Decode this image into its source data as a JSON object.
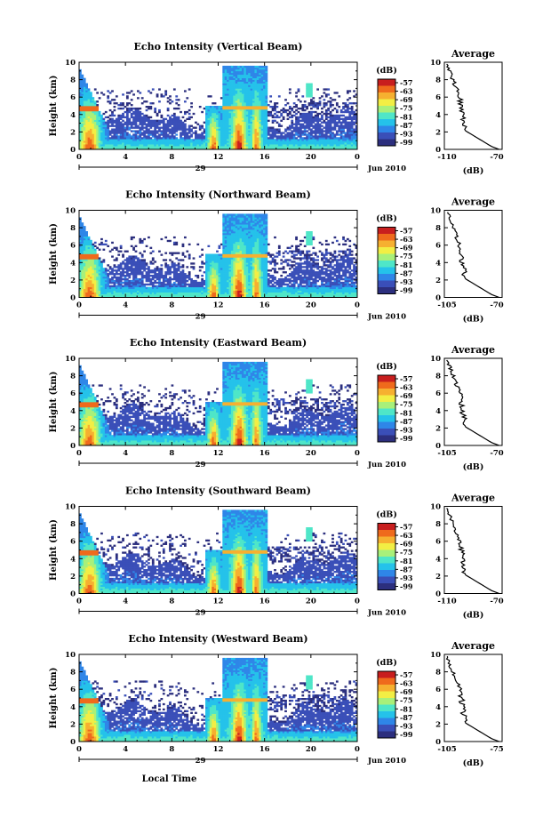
{
  "colors": {
    "scale": [
      "#2c2f7e",
      "#3a4fb8",
      "#2f86e8",
      "#25c2ea",
      "#4fe6c8",
      "#a8f07a",
      "#f2ee44",
      "#f6b030",
      "#ef6a1c",
      "#c81e1e"
    ]
  },
  "shared": {
    "ylabel": "Height (km)",
    "cb_unit": "(dB)",
    "cb_ticks": [
      "-57",
      "-63",
      "-69",
      "-75",
      "-81",
      "-87",
      "-93",
      "-99"
    ],
    "avg_title": "Average",
    "avg_unit": "(dB)",
    "date_label": "Jun 2010",
    "xlabel": "Local Time"
  },
  "chart_data": [
    {
      "type": "heatmap",
      "title": "Echo Intensity (Vertical Beam)",
      "x": [
        0,
        4,
        8,
        12,
        16,
        20,
        0
      ],
      "x_tick_labels": [
        "0",
        "4",
        "8",
        "12",
        "16",
        "20",
        "0"
      ],
      "y_ticks": [
        "0",
        "2",
        "4",
        "6",
        "8",
        "10"
      ],
      "ylim": [
        0,
        10
      ],
      "xlim": [
        0,
        24
      ],
      "day_label": "29",
      "colorbar_range": [
        -99,
        -57
      ],
      "average_profile": {
        "xlim": [
          -110,
          -70
        ],
        "x_tick_labels": [
          "-110",
          "-70"
        ],
        "y_ticks": [
          "0",
          "2",
          "4",
          "6",
          "8",
          "10"
        ]
      }
    },
    {
      "type": "heatmap",
      "title": "Echo Intensity (Northward Beam)",
      "x": [
        0,
        4,
        8,
        12,
        16,
        20,
        0
      ],
      "x_tick_labels": [
        "0",
        "4",
        "8",
        "12",
        "16",
        "20",
        "0"
      ],
      "y_ticks": [
        "0",
        "2",
        "4",
        "6",
        "8",
        "10"
      ],
      "ylim": [
        0,
        10
      ],
      "xlim": [
        0,
        24
      ],
      "day_label": "29",
      "colorbar_range": [
        -99,
        -57
      ],
      "average_profile": {
        "xlim": [
          -105,
          -70
        ],
        "x_tick_labels": [
          "-105",
          "-70"
        ],
        "y_ticks": [
          "0",
          "2",
          "4",
          "6",
          "8",
          "10"
        ]
      }
    },
    {
      "type": "heatmap",
      "title": "Echo Intensity (Eastward Beam)",
      "x": [
        0,
        4,
        8,
        12,
        16,
        20,
        0
      ],
      "x_tick_labels": [
        "0",
        "4",
        "8",
        "12",
        "16",
        "20",
        "0"
      ],
      "y_ticks": [
        "0",
        "2",
        "4",
        "6",
        "8",
        "10"
      ],
      "ylim": [
        0,
        10
      ],
      "xlim": [
        0,
        24
      ],
      "day_label": "29",
      "colorbar_range": [
        -99,
        -57
      ],
      "average_profile": {
        "xlim": [
          -105,
          -70
        ],
        "x_tick_labels": [
          "-105",
          "-70"
        ],
        "y_ticks": [
          "0",
          "2",
          "4",
          "6",
          "8",
          "10"
        ]
      }
    },
    {
      "type": "heatmap",
      "title": "Echo Intensity (Southward Beam)",
      "x": [
        0,
        4,
        8,
        12,
        16,
        20,
        0
      ],
      "x_tick_labels": [
        "0",
        "4",
        "8",
        "12",
        "16",
        "20",
        "0"
      ],
      "y_ticks": [
        "0",
        "2",
        "4",
        "6",
        "8",
        "10"
      ],
      "ylim": [
        0,
        10
      ],
      "xlim": [
        0,
        24
      ],
      "day_label": "29",
      "colorbar_range": [
        -99,
        -57
      ],
      "average_profile": {
        "xlim": [
          -110,
          -70
        ],
        "x_tick_labels": [
          "-110",
          "-70"
        ],
        "y_ticks": [
          "0",
          "2",
          "4",
          "6",
          "8",
          "10"
        ]
      }
    },
    {
      "type": "heatmap",
      "title": "Echo Intensity (Westward Beam)",
      "x": [
        0,
        4,
        8,
        12,
        16,
        20,
        0
      ],
      "x_tick_labels": [
        "0",
        "4",
        "8",
        "12",
        "16",
        "20",
        "0"
      ],
      "y_ticks": [
        "0",
        "2",
        "4",
        "6",
        "8",
        "10"
      ],
      "ylim": [
        0,
        10
      ],
      "xlim": [
        0,
        24
      ],
      "day_label": "29",
      "colorbar_range": [
        -99,
        -57
      ],
      "average_profile": {
        "xlim": [
          -105,
          -75
        ],
        "x_tick_labels": [
          "-105",
          "-75"
        ],
        "y_ticks": [
          "0",
          "2",
          "4",
          "6",
          "8",
          "10"
        ]
      }
    }
  ]
}
